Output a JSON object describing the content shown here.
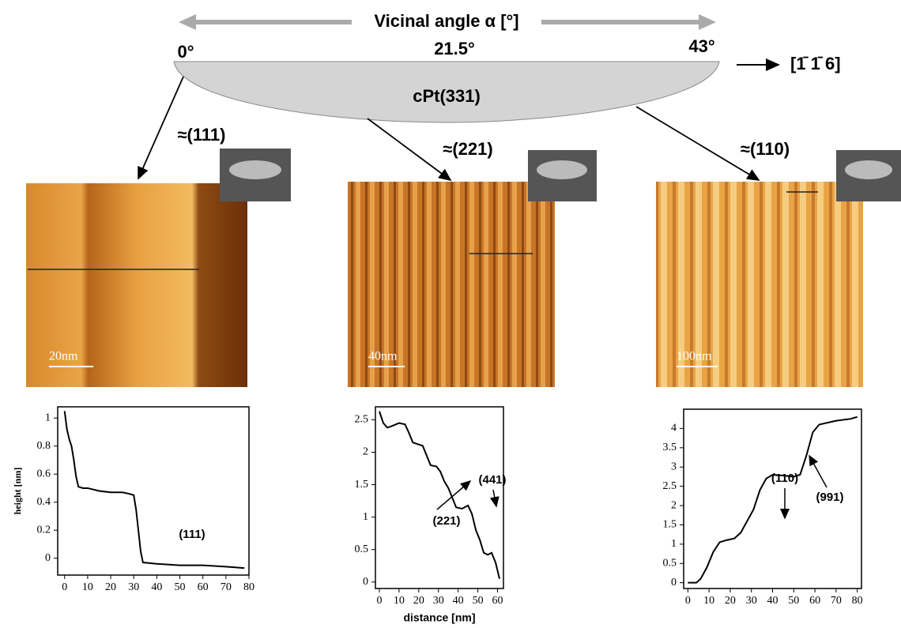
{
  "figure": {
    "axis_title": "Vicinal angle α [°]",
    "angle_start": "0°",
    "angle_mid": "21.5°",
    "angle_end": "43°",
    "direction": "[1̄ 1̄ 6]",
    "crystal": "cPt(331)",
    "facets": [
      "≈(111)",
      "≈(221)",
      "≈(110)"
    ],
    "scale_bars": [
      "20nm",
      "40nm",
      "100nm"
    ]
  },
  "chart_data": [
    {
      "type": "line",
      "ylabel": "height [nm]",
      "annotations": [
        "(111)"
      ],
      "x": [
        0,
        1,
        2,
        3,
        4,
        5,
        6,
        8,
        10,
        15,
        20,
        25,
        28,
        30,
        31,
        32,
        33,
        34,
        40,
        50,
        60,
        70,
        78
      ],
      "series": [
        {
          "color": "#000000",
          "values": [
            1.05,
            0.92,
            0.85,
            0.8,
            0.7,
            0.58,
            0.51,
            0.5,
            0.5,
            0.48,
            0.47,
            0.47,
            0.46,
            0.45,
            0.35,
            0.2,
            0.05,
            -0.03,
            -0.04,
            -0.05,
            -0.05,
            -0.06,
            -0.07
          ]
        }
      ],
      "xlim": [
        -3,
        80
      ],
      "xticks": [
        0,
        10,
        20,
        30,
        40,
        50,
        60,
        70,
        80
      ],
      "ylim": [
        -0.12,
        1.08
      ],
      "yticks": [
        0,
        0.2,
        0.4,
        0.6,
        0.8,
        1
      ]
    },
    {
      "type": "line",
      "xlabel": "distance [nm]",
      "annotations": [
        "(441)",
        "(221)"
      ],
      "x": [
        0,
        2,
        4,
        6,
        10,
        13,
        15,
        17,
        20,
        22,
        24,
        26,
        29,
        31,
        33,
        35,
        37,
        39,
        42,
        45,
        47,
        49,
        51,
        53,
        55,
        57,
        59,
        61
      ],
      "series": [
        {
          "color": "#000000",
          "values": [
            2.63,
            2.45,
            2.38,
            2.4,
            2.45,
            2.43,
            2.3,
            2.15,
            2.12,
            2.1,
            1.95,
            1.8,
            1.78,
            1.7,
            1.55,
            1.45,
            1.3,
            1.15,
            1.13,
            1.18,
            1.05,
            0.8,
            0.65,
            0.45,
            0.42,
            0.45,
            0.3,
            0.05
          ]
        }
      ],
      "xlim": [
        -2,
        63
      ],
      "xticks": [
        0,
        10,
        20,
        30,
        40,
        50,
        60
      ],
      "ylim": [
        -0.1,
        2.7
      ],
      "yticks": [
        0,
        0.5,
        1,
        1.5,
        2,
        2.5
      ]
    },
    {
      "type": "line",
      "annotations": [
        "(110)",
        "(991)"
      ],
      "x": [
        0,
        4,
        6,
        9,
        12,
        15,
        18,
        22,
        25,
        28,
        31,
        34,
        37,
        40,
        45,
        50,
        53,
        56,
        59,
        62,
        70,
        77,
        80
      ],
      "series": [
        {
          "color": "#000000",
          "values": [
            0,
            0,
            0.1,
            0.4,
            0.8,
            1.05,
            1.1,
            1.15,
            1.3,
            1.6,
            1.9,
            2.4,
            2.7,
            2.8,
            2.78,
            2.75,
            2.8,
            3.3,
            3.9,
            4.1,
            4.2,
            4.25,
            4.3
          ]
        }
      ],
      "xlim": [
        -2,
        82
      ],
      "xticks": [
        0,
        10,
        20,
        30,
        40,
        50,
        60,
        70,
        80
      ],
      "ylim": [
        -0.15,
        4.5
      ],
      "yticks": [
        0,
        0.5,
        1,
        1.5,
        2,
        2.5,
        3,
        3.5,
        4
      ]
    }
  ]
}
